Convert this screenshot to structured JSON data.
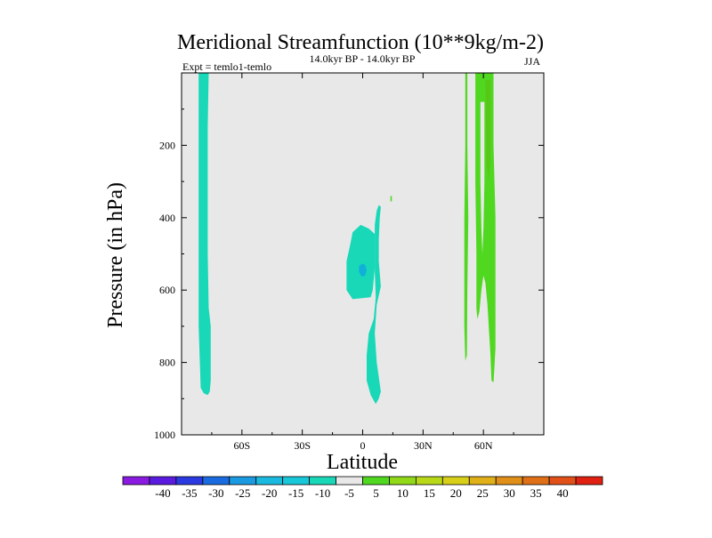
{
  "chart_data": {
    "type": "contour",
    "title": "Meridional Streamfunction (10**9kg/m-2)",
    "subtitle": "14.0kyr BP - 14.0kyr BP",
    "left_annotation": "Expt = temlo1-temlo",
    "right_annotation": "JJA",
    "xlabel": "Latitude",
    "ylabel": "Pressure (in hPa)",
    "xlim": [
      -90,
      90
    ],
    "ylim": [
      0,
      1000
    ],
    "y_inverted": true,
    "x_ticks": [
      {
        "value": -60,
        "label": "60S"
      },
      {
        "value": -30,
        "label": "30S"
      },
      {
        "value": 0,
        "label": "0"
      },
      {
        "value": 30,
        "label": "30N"
      },
      {
        "value": 60,
        "label": "60N"
      }
    ],
    "y_ticks": [
      {
        "value": 200,
        "label": "200"
      },
      {
        "value": 400,
        "label": "400"
      },
      {
        "value": 600,
        "label": "600"
      },
      {
        "value": 800,
        "label": "800"
      },
      {
        "value": 1000,
        "label": "1000"
      }
    ],
    "background_color": "#e8e8e8",
    "regions": [
      {
        "name": "southern-high-lat-cell",
        "color": "#18d8b8",
        "points": [
          [
            -81.5,
            0
          ],
          [
            -76.5,
            0
          ],
          [
            -77,
            150
          ],
          [
            -77,
            500
          ],
          [
            -76.5,
            650
          ],
          [
            -75.5,
            700
          ],
          [
            -75.5,
            850
          ],
          [
            -76,
            880
          ],
          [
            -77,
            890
          ],
          [
            -79,
            885
          ],
          [
            -80.5,
            870
          ],
          [
            -81.5,
            700
          ],
          [
            -81.5,
            300
          ]
        ]
      },
      {
        "name": "equatorial-cell",
        "color": "#18d8b8",
        "points": [
          [
            8,
            365
          ],
          [
            7,
            380
          ],
          [
            6,
            420
          ],
          [
            6,
            550
          ],
          [
            6.5,
            620
          ],
          [
            5.5,
            680
          ],
          [
            3,
            720
          ],
          [
            2,
            780
          ],
          [
            2,
            850
          ],
          [
            4,
            890
          ],
          [
            6.5,
            915
          ],
          [
            8,
            900
          ],
          [
            9,
            880
          ],
          [
            7,
            800
          ],
          [
            6,
            720
          ],
          [
            7,
            640
          ],
          [
            9,
            590
          ],
          [
            8,
            520
          ],
          [
            8,
            460
          ],
          [
            8.5,
            400
          ],
          [
            9,
            370
          ]
        ]
      },
      {
        "name": "equatorial-cell-core",
        "color": "#18d8b8",
        "points": [
          [
            -5,
            440
          ],
          [
            -1,
            420
          ],
          [
            3,
            430
          ],
          [
            6,
            445
          ],
          [
            6,
            540
          ],
          [
            5,
            600
          ],
          [
            4,
            620
          ],
          [
            -5,
            625
          ],
          [
            -8,
            600
          ],
          [
            -8,
            520
          ],
          [
            -6,
            470
          ]
        ]
      },
      {
        "name": "equatorial-min",
        "color": "#10b0d8",
        "points": [
          [
            -0.5,
            527
          ],
          [
            1.2,
            530
          ],
          [
            2,
            545
          ],
          [
            1.2,
            560
          ],
          [
            -0.5,
            563
          ],
          [
            -1.8,
            550
          ],
          [
            -1.8,
            535
          ]
        ]
      },
      {
        "name": "northern-upper-cell-a",
        "color": "#50d820",
        "points": [
          [
            51,
            0
          ],
          [
            52,
            0
          ],
          [
            52,
            200
          ],
          [
            52.5,
            400
          ],
          [
            52,
            600
          ],
          [
            51.8,
            780
          ],
          [
            51,
            795
          ],
          [
            50.5,
            700
          ],
          [
            50.5,
            400
          ],
          [
            51,
            200
          ]
        ]
      },
      {
        "name": "northern-upper-cell-b",
        "color": "#50d820",
        "points": [
          [
            56,
            0
          ],
          [
            65,
            0
          ],
          [
            65,
            200
          ],
          [
            66,
            400
          ],
          [
            66,
            600
          ],
          [
            66,
            760
          ],
          [
            65.5,
            810
          ],
          [
            65,
            855
          ],
          [
            64,
            850
          ],
          [
            63.5,
            780
          ],
          [
            62,
            640
          ],
          [
            61,
            580
          ],
          [
            60,
            560
          ],
          [
            59,
            600
          ],
          [
            58,
            660
          ],
          [
            57,
            680
          ],
          [
            56.5,
            650
          ],
          [
            56.5,
            500
          ],
          [
            56,
            300
          ],
          [
            56,
            150
          ]
        ]
      },
      {
        "name": "northern-upper-cell-b-gap",
        "color": "#e8e8e8",
        "points": [
          [
            58.5,
            80
          ],
          [
            60.5,
            80
          ],
          [
            60.5,
            300
          ],
          [
            60,
            430
          ],
          [
            59.5,
            500
          ],
          [
            59,
            430
          ],
          [
            58.5,
            300
          ]
        ]
      },
      {
        "name": "northern-upper-cell-b-core",
        "color": "#58c818",
        "points": [
          [
            61,
            20
          ],
          [
            63.5,
            20
          ],
          [
            63.5,
            250
          ],
          [
            62.5,
            300
          ],
          [
            61.5,
            250
          ]
        ]
      },
      {
        "name": "small-speck",
        "color": "#50d820",
        "points": [
          [
            13.8,
            340
          ],
          [
            14.5,
            340
          ],
          [
            14.5,
            355
          ],
          [
            13.8,
            355
          ]
        ]
      }
    ],
    "colorbar": {
      "colors": [
        "#8a1ae0",
        "#5a1ae0",
        "#2a3ae0",
        "#1a6ae0",
        "#1a9ae0",
        "#1abae0",
        "#18c8d8",
        "#18d8b8",
        "#e8e8e8",
        "#50d820",
        "#90d818",
        "#b8d818",
        "#d8d018",
        "#e0b018",
        "#e09018",
        "#e07018",
        "#e05018",
        "#e02010"
      ],
      "labels": [
        "-40",
        "-35",
        "-30",
        "-25",
        "-20",
        "-15",
        "-10",
        "-5",
        "5",
        "10",
        "15",
        "20",
        "25",
        "30",
        "35",
        "40"
      ]
    }
  }
}
